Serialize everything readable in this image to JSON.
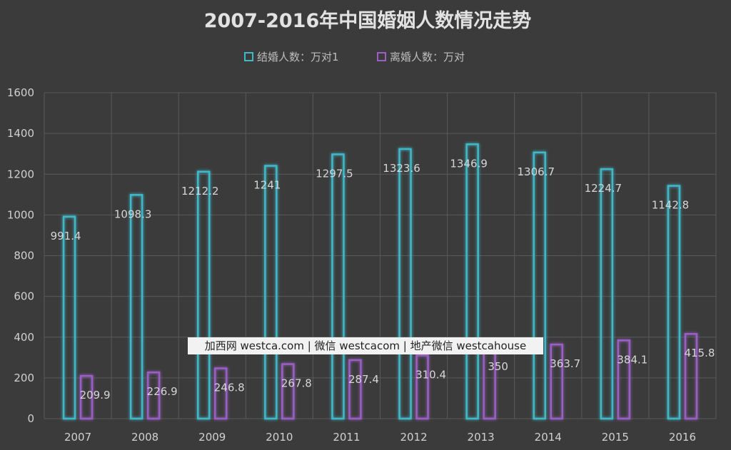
{
  "chart_data": {
    "type": "bar",
    "title": "2007-2016年中国婚姻人数情况走势",
    "categories": [
      "2007",
      "2008",
      "2009",
      "2010",
      "2011",
      "2012",
      "2013",
      "2014",
      "2015",
      "2016"
    ],
    "series": [
      {
        "name": "结婚人数：万对1",
        "color": "#3fb8c8",
        "values": [
          991.4,
          1098.3,
          1212.2,
          1241,
          1297.5,
          1323.6,
          1346.9,
          1306.7,
          1224.7,
          1142.8
        ],
        "labels": [
          "991.4",
          "1098.3",
          "1212.2",
          "1241",
          "1297.5",
          "1323.6",
          "1346.9",
          "1306.7",
          "1224.7",
          "1142.8"
        ]
      },
      {
        "name": "离婚人数：万对",
        "color": "#9a5fc4",
        "values": [
          209.9,
          226.9,
          246.8,
          267.8,
          287.4,
          310.4,
          350,
          363.7,
          384.1,
          415.8
        ],
        "labels": [
          "209.9",
          "226.9",
          "246.8",
          "267.8",
          "287.4",
          "310.4",
          "350",
          "363.7",
          "384.1",
          "415.8"
        ]
      }
    ],
    "ylim": [
      0,
      1600
    ],
    "yticks": [
      "0",
      "200",
      "400",
      "600",
      "800",
      "1000",
      "1200",
      "1400",
      "1600"
    ],
    "xlabel": "",
    "ylabel": "",
    "grid": true,
    "legend_position": "top-center"
  },
  "watermark": "加西网 westca.com | 微信 westcacom | 地产微信 westcahouse"
}
